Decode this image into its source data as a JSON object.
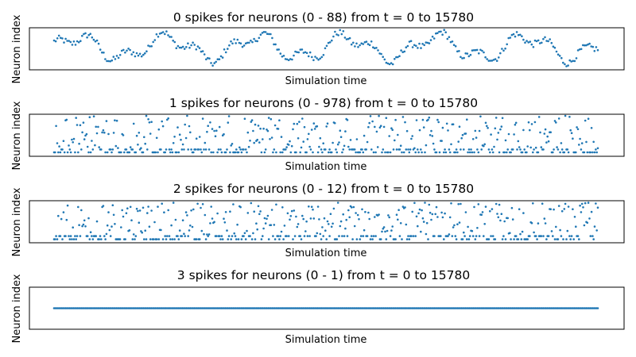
{
  "figure": {
    "background": "#ffffff",
    "dot_color": "#1f77b4"
  },
  "chart_data": [
    {
      "type": "scatter",
      "title": "0 spikes for neurons (0 - 88) from t = 0 to 15780",
      "xlabel": "Simulation time",
      "ylabel": "Neuron index",
      "xlim": [
        0,
        15780
      ],
      "ylim": [
        -20,
        70
      ],
      "xticks": false,
      "yticks": false,
      "grid": false,
      "pattern": {
        "style": "wavy",
        "t_start": 0,
        "t_end": 15780,
        "count": 330,
        "amplitude": 22,
        "center": 28,
        "band_levels": [],
        "random_low": 0,
        "random_high": 0,
        "random_fraction": 0
      }
    },
    {
      "type": "scatter",
      "title": "1 spikes for neurons (0 - 978) from t = 0 to 15780",
      "xlabel": "Simulation time",
      "ylabel": "Neuron index",
      "xlim": [
        0,
        15780
      ],
      "ylim": [
        -50,
        1000
      ],
      "xticks": false,
      "yticks": false,
      "grid": false,
      "pattern": {
        "style": "sparse",
        "t_start": 0,
        "t_end": 15780,
        "count": 520,
        "amplitude": 0,
        "center": 0,
        "band_levels": [
          50,
          120
        ],
        "random_low": 150,
        "random_high": 978,
        "random_fraction": 0.55
      }
    },
    {
      "type": "scatter",
      "title": "2 spikes for neurons (0 - 12) from t = 0 to 15780",
      "xlabel": "Simulation time",
      "ylabel": "Neuron index",
      "xlim": [
        0,
        15780
      ],
      "ylim": [
        -0.6,
        12.6
      ],
      "xticks": false,
      "yticks": false,
      "grid": false,
      "pattern": {
        "style": "sparse",
        "t_start": 0,
        "t_end": 15780,
        "count": 520,
        "amplitude": 0,
        "center": 0,
        "band_levels": [
          0.5,
          1.5
        ],
        "random_low": 2,
        "random_high": 12,
        "random_fraction": 0.55
      }
    },
    {
      "type": "scatter",
      "title": "3 spikes for neurons (0 - 1) from t = 0 to 15780",
      "xlabel": "Simulation time",
      "ylabel": "Neuron index",
      "xlim": [
        0,
        15780
      ],
      "ylim": [
        -1,
        1
      ],
      "xticks": false,
      "yticks": false,
      "grid": false,
      "pattern": {
        "style": "line",
        "t_start": 0,
        "t_end": 15780,
        "count": 420,
        "amplitude": 0,
        "center": 0,
        "band_levels": [
          0
        ],
        "random_low": 0,
        "random_high": 0,
        "random_fraction": 0
      }
    }
  ]
}
